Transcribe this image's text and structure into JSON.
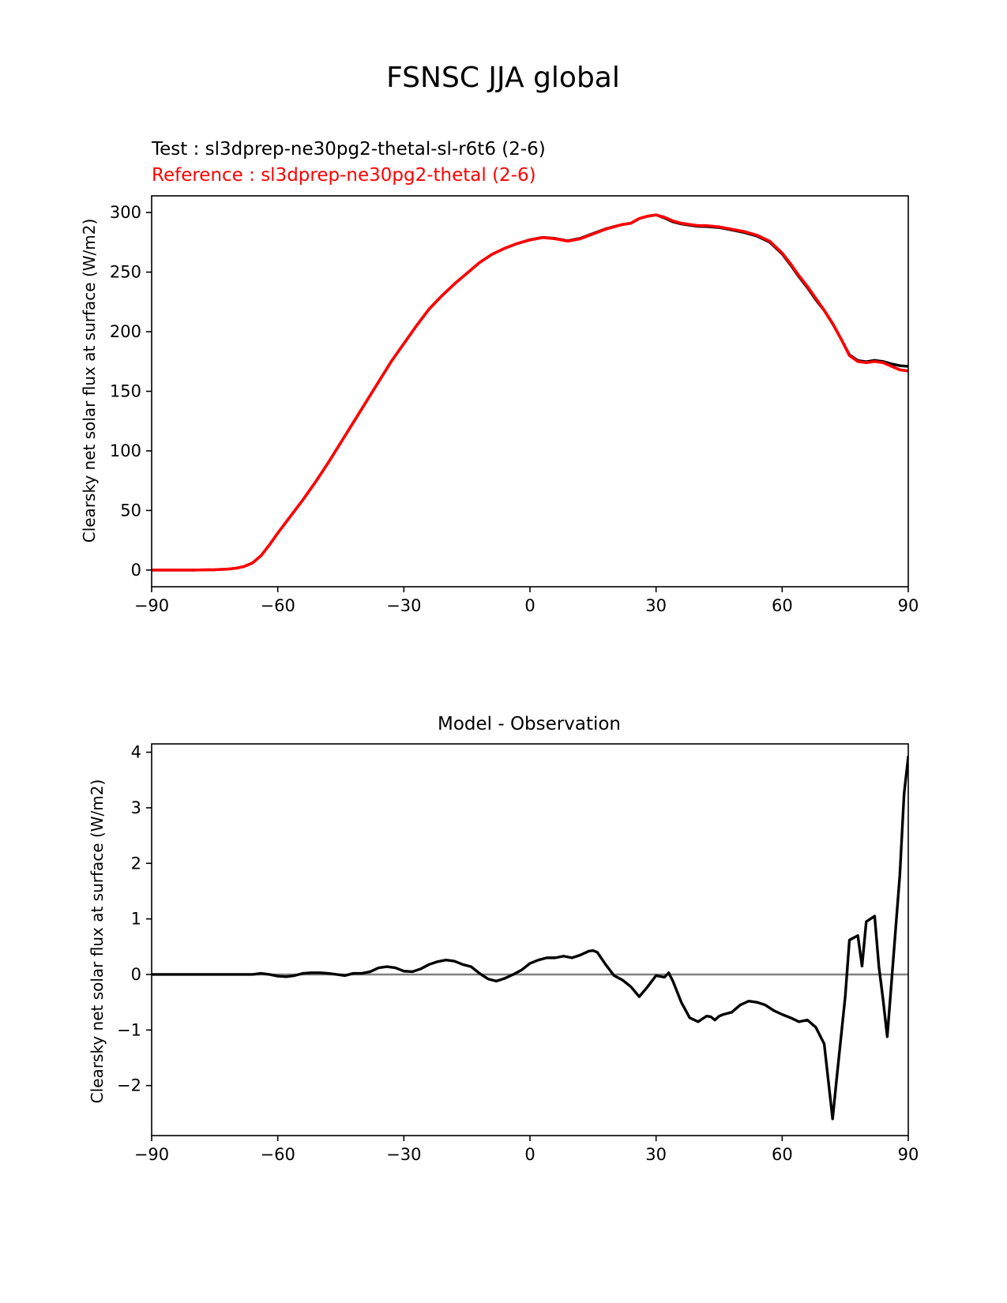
{
  "figure": {
    "title": "FSNSC JJA global"
  },
  "chart_data": [
    {
      "type": "line",
      "test_label": "Test : sl3dprep-ne30pg2-thetal-sl-r6t6 (2-6)",
      "reference_label": "Reference : sl3dprep-ne30pg2-thetal (2-6)",
      "ylabel": "Clearsky net solar flux at surface (W/m2)",
      "xlim": [
        -90,
        90
      ],
      "ylim": [
        -14,
        314
      ],
      "xticks": [
        -90,
        -60,
        -30,
        0,
        30,
        60,
        90
      ],
      "xtick_labels": [
        "−90",
        "−60",
        "−30",
        "0",
        "30",
        "60",
        "90"
      ],
      "yticks": [
        0,
        50,
        100,
        150,
        200,
        250,
        300
      ],
      "ytick_labels": [
        "0",
        "50",
        "100",
        "150",
        "200",
        "250",
        "300"
      ],
      "colors": {
        "test": "#000000",
        "reference": "#ff0000"
      },
      "series": [
        {
          "role": "reference",
          "x": [
            -90,
            -85,
            -80,
            -75,
            -72,
            -70,
            -68,
            -66,
            -64,
            -62,
            -60,
            -57,
            -54,
            -51,
            -48,
            -45,
            -42,
            -39,
            -36,
            -33,
            -30,
            -27,
            -24,
            -21,
            -18,
            -15,
            -12,
            -9,
            -6,
            -3,
            0,
            3,
            6,
            9,
            12,
            15,
            18,
            20,
            22,
            24,
            26,
            28,
            30,
            32,
            34,
            36,
            38,
            40,
            42,
            45,
            48,
            51,
            54,
            57,
            60,
            62,
            64,
            66,
            68,
            70,
            72,
            74,
            76,
            78,
            80,
            82,
            84,
            86,
            88,
            90
          ],
          "y": [
            0,
            0,
            0,
            0.3,
            0.8,
            1.5,
            3,
            6,
            12,
            21,
            31,
            45,
            59,
            74,
            90,
            107,
            124,
            141,
            158,
            175,
            190,
            205,
            219,
            230,
            240,
            249,
            258,
            265,
            270,
            274,
            277,
            279,
            278,
            276,
            278,
            282,
            286,
            288,
            290,
            291,
            295,
            297,
            298,
            296,
            293,
            291,
            290,
            289,
            289,
            288,
            286,
            284,
            281,
            276,
            266,
            257,
            247,
            238,
            228,
            218,
            207,
            194,
            180,
            175,
            174,
            175,
            174,
            171,
            168,
            167
          ]
        },
        {
          "role": "test",
          "x": [
            -90,
            -85,
            -80,
            -75,
            -72,
            -70,
            -68,
            -66,
            -64,
            -62,
            -60,
            -57,
            -54,
            -51,
            -48,
            -45,
            -42,
            -39,
            -36,
            -33,
            -30,
            -27,
            -24,
            -21,
            -18,
            -15,
            -12,
            -9,
            -6,
            -3,
            0,
            3,
            6,
            9,
            12,
            15,
            18,
            20,
            22,
            24,
            26,
            28,
            30,
            32,
            34,
            36,
            38,
            40,
            42,
            45,
            48,
            51,
            54,
            57,
            60,
            62,
            64,
            66,
            68,
            70,
            72,
            74,
            76,
            78,
            80,
            82,
            84,
            86,
            88,
            90
          ],
          "y": [
            0,
            0,
            0,
            0.3,
            0.8,
            1.5,
            3,
            6,
            12,
            21,
            31,
            45,
            59,
            74,
            90,
            107,
            124,
            141,
            158,
            175,
            190,
            205,
            219,
            230,
            240,
            249,
            258,
            265,
            270,
            274,
            277.2,
            279.2,
            278.3,
            276.3,
            278.4,
            282.4,
            286.3,
            288.2,
            290,
            291,
            294.9,
            296.9,
            298,
            295.4,
            292.2,
            290.4,
            289.4,
            288.4,
            288.2,
            287.4,
            285.4,
            283.2,
            280.2,
            275.2,
            265.2,
            256,
            246,
            237,
            226.8,
            217.8,
            206.6,
            194.1,
            180.6,
            175.8,
            174.8,
            176,
            175,
            173,
            171.5,
            170.9
          ]
        }
      ]
    },
    {
      "type": "line",
      "title": "Model - Observation",
      "ylabel": "Clearsky net solar flux at surface (W/m2)",
      "xlim": [
        -90,
        90
      ],
      "ylim": [
        -2.9,
        4.15
      ],
      "xticks": [
        -90,
        -60,
        -30,
        0,
        30,
        60,
        90
      ],
      "xtick_labels": [
        "−90",
        "−60",
        "−30",
        "0",
        "30",
        "60",
        "90"
      ],
      "yticks": [
        -2,
        -1,
        0,
        1,
        2,
        3,
        4
      ],
      "ytick_labels": [
        "−2",
        "−1",
        "0",
        "1",
        "2",
        "3",
        "4"
      ],
      "colors": {
        "difference": "#000000",
        "zero_line": "#808080"
      },
      "zero_line": 0,
      "series": [
        {
          "role": "difference",
          "x": [
            -90,
            -80,
            -72,
            -70,
            -68,
            -66,
            -64,
            -62,
            -60,
            -58,
            -56,
            -54,
            -52,
            -50,
            -48,
            -46,
            -44,
            -42,
            -40,
            -38,
            -36,
            -34,
            -32,
            -30,
            -28,
            -26,
            -24,
            -22,
            -20,
            -18,
            -16,
            -14,
            -12,
            -10,
            -8,
            -6,
            -4,
            -2,
            0,
            2,
            4,
            6,
            8,
            10,
            12,
            14,
            15,
            16,
            18,
            20,
            22,
            24,
            26,
            28,
            30,
            32,
            33,
            34,
            36,
            38,
            40,
            42,
            43,
            44,
            45,
            46,
            48,
            50,
            52,
            54,
            56,
            58,
            60,
            62,
            64,
            66,
            68,
            70,
            72,
            73,
            75,
            76,
            78,
            79,
            80,
            82,
            83,
            84,
            85,
            86,
            88,
            89,
            90
          ],
          "y": [
            0,
            0,
            0,
            0,
            0,
            0,
            0.02,
            0,
            -0.03,
            -0.04,
            -0.02,
            0.02,
            0.03,
            0.03,
            0.02,
            0,
            -0.02,
            0.02,
            0.02,
            0.05,
            0.12,
            0.14,
            0.12,
            0.06,
            0.05,
            0.1,
            0.18,
            0.23,
            0.26,
            0.24,
            0.18,
            0.14,
            0.02,
            -0.08,
            -0.12,
            -0.07,
            0,
            0.08,
            0.2,
            0.26,
            0.3,
            0.3,
            0.33,
            0.3,
            0.35,
            0.42,
            0.43,
            0.4,
            0.18,
            -0.02,
            -0.1,
            -0.22,
            -0.4,
            -0.22,
            -0.02,
            -0.05,
            0.03,
            -0.12,
            -0.5,
            -0.78,
            -0.85,
            -0.75,
            -0.76,
            -0.82,
            -0.75,
            -0.72,
            -0.68,
            -0.55,
            -0.48,
            -0.5,
            -0.55,
            -0.65,
            -0.72,
            -0.78,
            -0.85,
            -0.82,
            -0.95,
            -1.25,
            -2.6,
            -1.85,
            -0.4,
            0.62,
            0.7,
            0.15,
            0.95,
            1.05,
            0.15,
            -0.45,
            -1.12,
            -0.15,
            1.8,
            3.25,
            3.92
          ]
        }
      ]
    }
  ]
}
